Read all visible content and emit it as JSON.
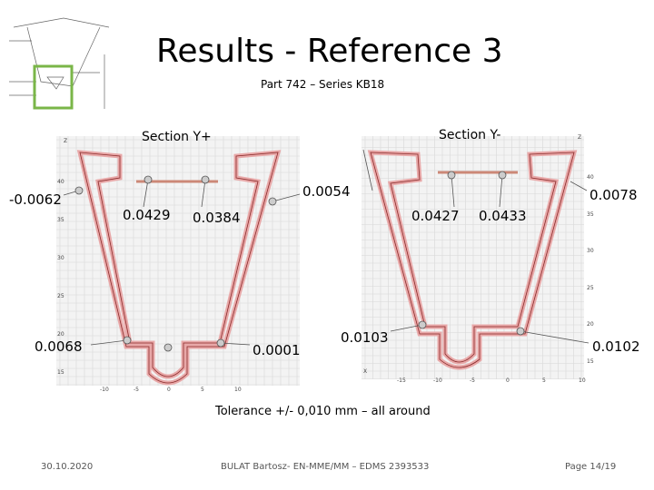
{
  "header": {
    "title": "Results - Reference 3",
    "subtitle": "Part 742 – Series KB18"
  },
  "sections": [
    {
      "label": "Section Y+",
      "measurements": [
        "-0.0062",
        "0.0429",
        "0.0384",
        "0.0054",
        "0.0068",
        "0.0001"
      ],
      "z_label": "Z",
      "y_ticks": [
        "40",
        "35",
        "30",
        "25",
        "20",
        "15"
      ],
      "x_ticks": [
        "-10",
        "-5",
        "0",
        "5",
        "10"
      ]
    },
    {
      "label": "Section Y-",
      "measurements": [
        "0.0103",
        "0.0427",
        "0.0433",
        "0.0078",
        "0.0102"
      ],
      "z_label": "Z",
      "x_label": "X",
      "y_ticks": [
        "40",
        "35",
        "30",
        "25",
        "20",
        "15"
      ],
      "x_ticks": [
        "-15",
        "-10",
        "-5",
        "0",
        "5",
        "10"
      ]
    }
  ],
  "tolerance": "Tolerance +/- 0,010 mm – all around",
  "footer": {
    "date": "30.10.2020",
    "author": "BULAT Bartosz- EN-MME/MM – EDMS 2393533",
    "page": "Page 14/19"
  }
}
